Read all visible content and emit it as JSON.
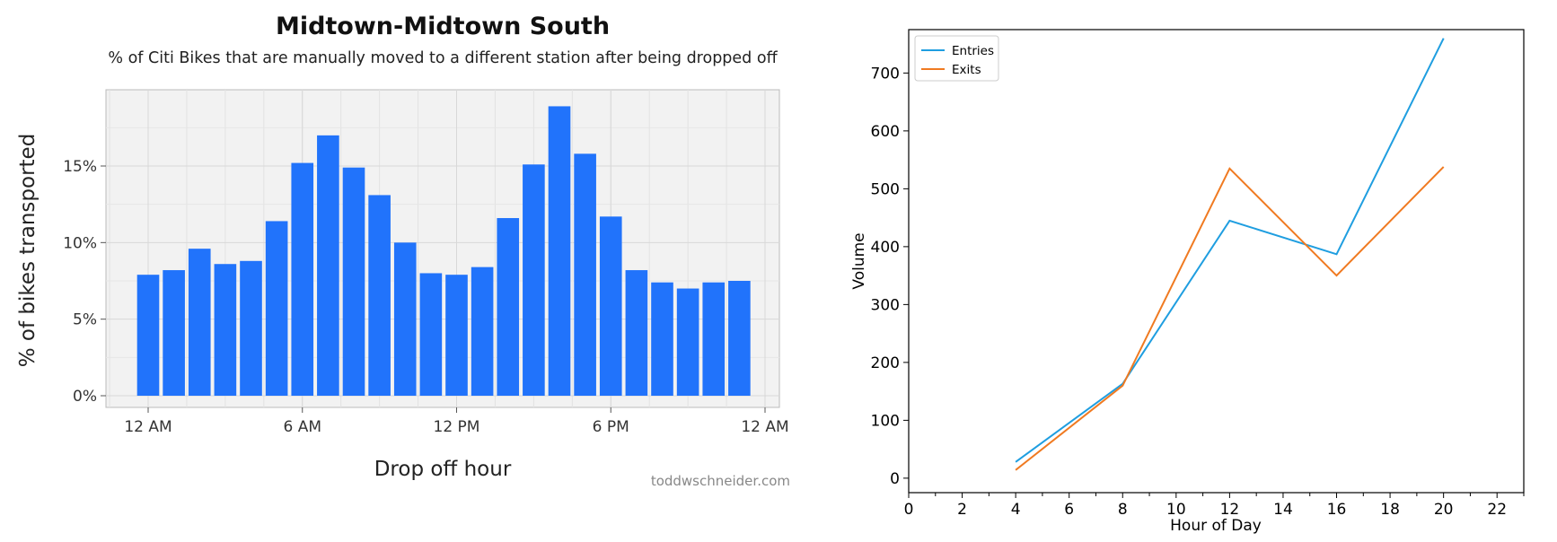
{
  "chart_data": [
    {
      "type": "bar",
      "title": "Midtown-Midtown South",
      "subtitle": "% of Citi Bikes that are manually moved to a different station after being dropped off",
      "xlabel": "Drop off hour",
      "ylabel": "% of bikes transported",
      "x_tick_labels": [
        "12 AM",
        "6 AM",
        "12 PM",
        "6 PM",
        "12 AM"
      ],
      "y_tick_labels": [
        "0%",
        "5%",
        "10%",
        "15%"
      ],
      "hours": [
        0,
        1,
        2,
        3,
        4,
        5,
        6,
        7,
        8,
        9,
        10,
        11,
        12,
        13,
        14,
        15,
        16,
        17,
        18,
        19,
        20,
        21,
        22,
        23
      ],
      "values": [
        7.9,
        8.2,
        9.6,
        8.6,
        8.8,
        11.4,
        15.2,
        17.0,
        14.9,
        13.1,
        10.0,
        8.0,
        7.9,
        8.4,
        11.6,
        15.1,
        18.9,
        15.8,
        11.7,
        8.2,
        7.4,
        7.0,
        7.4,
        7.5
      ],
      "ylim": [
        0,
        20
      ],
      "color": "#2173fb",
      "grid": true,
      "watermark": "toddwschneider.com"
    },
    {
      "type": "line",
      "xlabel": "Hour of Day",
      "ylabel": "Volume",
      "xlim": [
        0,
        23
      ],
      "ylim": [
        -25,
        775
      ],
      "x_ticks": [
        0,
        2,
        4,
        6,
        8,
        10,
        12,
        14,
        16,
        18,
        20,
        22
      ],
      "y_ticks": [
        0,
        100,
        200,
        300,
        400,
        500,
        600,
        700
      ],
      "legend_position": "top-left",
      "series": [
        {
          "name": "Entries",
          "color": "#1f9ee0",
          "x": [
            4,
            8,
            12,
            16,
            20
          ],
          "y": [
            28,
            163,
            445,
            387,
            760
          ]
        },
        {
          "name": "Exits",
          "color": "#f07a21",
          "x": [
            4,
            8,
            12,
            16,
            20
          ],
          "y": [
            14,
            160,
            535,
            350,
            538
          ]
        }
      ]
    }
  ]
}
